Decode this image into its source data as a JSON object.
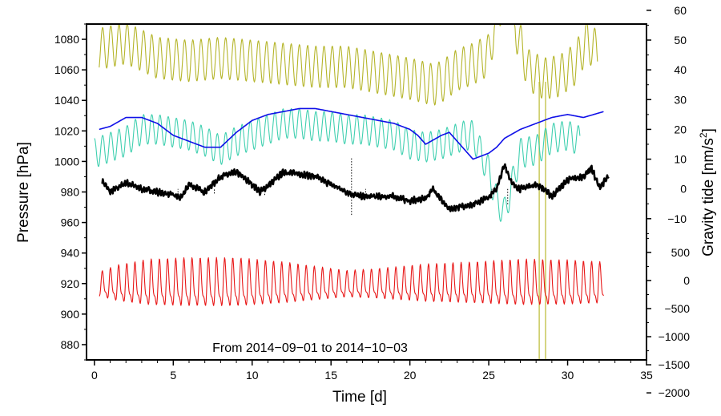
{
  "chart_data": {
    "type": "line",
    "annotation": "From 2014−09−01 to 2014−10−03",
    "x_axis": {
      "label": "Time [d]",
      "range": [
        -0.5,
        35
      ],
      "ticks": [
        0,
        5,
        10,
        15,
        20,
        25,
        30,
        35
      ],
      "tick_labels": [
        "0",
        "5",
        "10",
        "15",
        "20",
        "25",
        "30",
        "35"
      ]
    },
    "y_axis_left": {
      "label": "Pressure [hPa]",
      "range": [
        870,
        1090
      ],
      "ticks": [
        880,
        900,
        920,
        940,
        960,
        980,
        1000,
        1020,
        1040,
        1060,
        1080
      ],
      "tick_labels": [
        "880",
        "900",
        "920",
        "940",
        "960",
        "980",
        "1000",
        "1020",
        "1040",
        "1060",
        "1080"
      ]
    },
    "y_axis_right": {
      "label": "Gravity tide [nm/s",
      "label_superscript": "2",
      "label_close": "]",
      "upper_scale": {
        "ticks": [
          -10,
          0,
          10,
          20,
          30,
          40,
          50,
          60
        ],
        "tick_labels": [
          "−10",
          "0",
          "10",
          "20",
          "30",
          "40",
          "50",
          "60"
        ]
      },
      "lower_scale": {
        "ticks": [
          -2000,
          -1500,
          -1000,
          -500,
          0,
          500
        ],
        "tick_labels": [
          "−2000",
          "−1500",
          "−1000",
          "−500",
          "0",
          "500"
        ]
      }
    },
    "series": [
      {
        "name": "olive",
        "color": "#b5b52a",
        "scale": "right-upper",
        "t_start": 0.3,
        "t_end": 31.9,
        "x": [
          0.3,
          2,
          4,
          6,
          8,
          10,
          12,
          14,
          16,
          18,
          20,
          21.5,
          22,
          23,
          24,
          25,
          25.5,
          26,
          26.4,
          26.8,
          27.5,
          28.5,
          29.5,
          30.5,
          31.2,
          31.9
        ],
        "y": [
          47,
          49,
          44,
          43,
          44,
          43,
          42,
          41,
          41,
          39,
          37,
          35,
          36,
          40,
          42,
          45,
          58,
          66,
          63,
          52,
          40,
          37,
          38,
          42,
          50,
          46
        ],
        "amp": 7,
        "period": 0.52
      },
      {
        "name": "turquoise",
        "color": "#40d0b0",
        "scale": "right-upper",
        "t_start": 0,
        "t_end": 30.8,
        "x": [
          0,
          1,
          2,
          3,
          4,
          5,
          6,
          7,
          8,
          9,
          10,
          11,
          12,
          13,
          14,
          15,
          16,
          17,
          18,
          19,
          20,
          21,
          22,
          23,
          23.5,
          24,
          24.5,
          25,
          25.5,
          26,
          26.5,
          27,
          28,
          29,
          30,
          30.8
        ],
        "y": [
          12,
          14,
          16,
          20,
          20,
          19,
          18,
          16,
          13,
          16,
          18,
          20,
          22,
          22,
          21,
          21,
          20,
          20,
          19,
          18,
          15,
          14,
          15,
          17,
          18,
          18,
          12,
          6,
          -4,
          -8,
          2,
          12,
          13,
          17,
          18,
          16
        ],
        "amp": 5,
        "period": 0.52
      },
      {
        "name": "blue",
        "color": "#1010e8",
        "scale": "right-upper",
        "t_start": 0.3,
        "t_end": 32.3,
        "amp": 0,
        "x": [
          0.3,
          1,
          2,
          3,
          4,
          5,
          6,
          7,
          7.5,
          8,
          9,
          10,
          11,
          12,
          13,
          14,
          15,
          16,
          17,
          18,
          19,
          20,
          20.5,
          21,
          22,
          22.5,
          23,
          24,
          25,
          25.5,
          26,
          27,
          28,
          29,
          30,
          31,
          32.3
        ],
        "y": [
          20,
          21,
          24,
          24,
          22,
          18,
          16,
          14,
          14,
          14,
          19,
          23,
          25,
          26,
          27,
          27,
          26,
          25,
          24,
          23,
          22,
          20,
          18,
          15,
          18,
          19,
          16,
          10,
          12,
          14,
          17,
          20,
          22,
          24,
          25,
          24,
          26
        ]
      },
      {
        "name": "black",
        "color": "#000000",
        "scale": "left",
        "t_start": 0.5,
        "t_end": 32.6,
        "amp": 1.2,
        "period": 0.17,
        "x": [
          0.5,
          1,
          2,
          3,
          4,
          5,
          5.5,
          6,
          7,
          8,
          9,
          10,
          10.5,
          11,
          12,
          13,
          14,
          15,
          16,
          16.5,
          17,
          18,
          19,
          20,
          21,
          21.5,
          22,
          22.5,
          23,
          24,
          25,
          25.5,
          26,
          26.5,
          27,
          28,
          28.5,
          29,
          30,
          31,
          31.5,
          32,
          32.6
        ],
        "y": [
          987,
          980,
          986,
          982,
          980,
          978,
          976,
          985,
          980,
          990,
          993,
          985,
          980,
          984,
          993,
          992,
          990,
          985,
          980,
          978,
          977,
          977,
          977,
          974,
          976,
          982,
          975,
          968,
          970,
          972,
          977,
          982,
          998,
          985,
          982,
          985,
          982,
          977,
          988,
          990,
          996,
          983,
          990
        ],
        "spikes": [
          [
            5.3,
            976
          ],
          [
            7.6,
            979
          ],
          [
            10.8,
            978
          ],
          [
            16.3,
            965
          ],
          [
            16.3,
            1002
          ],
          [
            17.2,
            976
          ],
          [
            25.2,
            976
          ],
          [
            26.2,
            972
          ]
        ]
      },
      {
        "name": "red",
        "color": "#e81818",
        "scale": "right-lower",
        "t_start": 0.3,
        "t_end": 32.3,
        "mean": -100,
        "amp": 520,
        "period": 0.517,
        "envelope": [
          [
            0.3,
            0.5
          ],
          [
            1.5,
            0.75
          ],
          [
            3.5,
            0.95
          ],
          [
            6,
            1.0
          ],
          [
            9,
            1.0
          ],
          [
            12,
            0.85
          ],
          [
            14,
            0.7
          ],
          [
            16,
            0.55
          ],
          [
            18,
            0.62
          ],
          [
            21,
            0.78
          ],
          [
            24,
            0.85
          ],
          [
            27,
            0.95
          ],
          [
            30,
            0.92
          ],
          [
            32.3,
            0.85
          ]
        ]
      }
    ],
    "vertical_lines": {
      "color": "#c8c85a",
      "x": [
        28.2,
        28.6
      ]
    }
  }
}
